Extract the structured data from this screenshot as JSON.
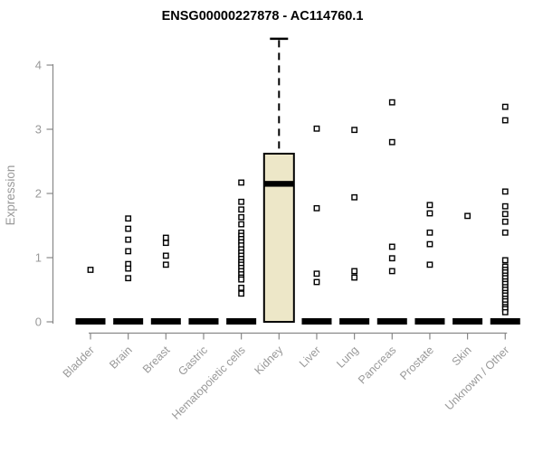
{
  "chart_data": {
    "type": "boxplot",
    "title": "ENSG00000227878 - AC114760.1",
    "ylabel": "Expression",
    "xlabel": "",
    "ylim": [
      0,
      4.55
    ],
    "y_ticks": [
      0,
      1,
      2,
      3,
      4
    ],
    "grid": false,
    "legend": "none",
    "categories": [
      "Bladder",
      "Brain",
      "Breast",
      "Gastric",
      "Hematopoietic cells",
      "Kidney",
      "Liver",
      "Lung",
      "Pancreas",
      "Prostate",
      "Skin",
      "Unknown / Other"
    ],
    "boxes": [
      {
        "category": "Bladder",
        "q1": 0,
        "median": 0,
        "q3": 0,
        "whisker_low": 0,
        "whisker_high": 0,
        "points": [
          0.81
        ]
      },
      {
        "category": "Brain",
        "q1": 0,
        "median": 0,
        "q3": 0,
        "whisker_low": 0,
        "whisker_high": 0,
        "points": [
          1.61,
          1.45,
          1.28,
          1.1,
          0.9,
          0.83,
          0.68
        ]
      },
      {
        "category": "Breast",
        "q1": 0,
        "median": 0,
        "q3": 0,
        "whisker_low": 0,
        "whisker_high": 0,
        "points": [
          1.31,
          1.23,
          1.03,
          0.89
        ]
      },
      {
        "category": "Gastric",
        "q1": 0,
        "median": 0,
        "q3": 0,
        "whisker_low": 0,
        "whisker_high": 0,
        "points": []
      },
      {
        "category": "Hematopoietic cells",
        "q1": 0,
        "median": 0,
        "q3": 0,
        "whisker_low": 0,
        "whisker_high": 0,
        "points": [
          2.17,
          1.87,
          1.75,
          1.63,
          1.52,
          1.39,
          1.34,
          1.29,
          1.24,
          1.19,
          1.13,
          1.08,
          1.03,
          0.98,
          0.93,
          0.89,
          0.84,
          0.79,
          0.74,
          0.69,
          0.66,
          0.53,
          0.44
        ]
      },
      {
        "category": "Kidney",
        "q1": 0,
        "median": 2.15,
        "q3": 2.62,
        "whisker_low": 0,
        "whisker_high": 4.41,
        "points": []
      },
      {
        "category": "Liver",
        "q1": 0,
        "median": 0,
        "q3": 0,
        "whisker_low": 0,
        "whisker_high": 0,
        "points": [
          3.01,
          1.77,
          0.75,
          0.62
        ]
      },
      {
        "category": "Lung",
        "q1": 0,
        "median": 0,
        "q3": 0,
        "whisker_low": 0,
        "whisker_high": 0,
        "points": [
          2.99,
          1.94,
          0.79,
          0.69
        ]
      },
      {
        "category": "Pancreas",
        "q1": 0,
        "median": 0,
        "q3": 0,
        "whisker_low": 0,
        "whisker_high": 0,
        "points": [
          3.42,
          2.8,
          1.17,
          0.99,
          0.79
        ]
      },
      {
        "category": "Prostate",
        "q1": 0,
        "median": 0,
        "q3": 0,
        "whisker_low": 0,
        "whisker_high": 0,
        "points": [
          1.82,
          1.69,
          1.39,
          1.21,
          0.89
        ]
      },
      {
        "category": "Skin",
        "q1": 0,
        "median": 0,
        "q3": 0,
        "whisker_low": 0,
        "whisker_high": 0,
        "points": [
          1.65
        ]
      },
      {
        "category": "Unknown / Other",
        "q1": 0,
        "median": 0,
        "q3": 0,
        "whisker_low": 0,
        "whisker_high": 0,
        "points": [
          3.35,
          3.14,
          2.03,
          1.8,
          1.68,
          1.56,
          1.39,
          0.96,
          0.86,
          0.81,
          0.77,
          0.72,
          0.68,
          0.63,
          0.59,
          0.54,
          0.5,
          0.45,
          0.41,
          0.36,
          0.32,
          0.27,
          0.23,
          0.2,
          0.15
        ]
      }
    ],
    "colors": {
      "box_fill": "#EDE7C8",
      "box_line": "#000000",
      "axis_line": "#888888",
      "text": "#999999",
      "title": "#000000",
      "point_fill": "#ffffff"
    }
  }
}
